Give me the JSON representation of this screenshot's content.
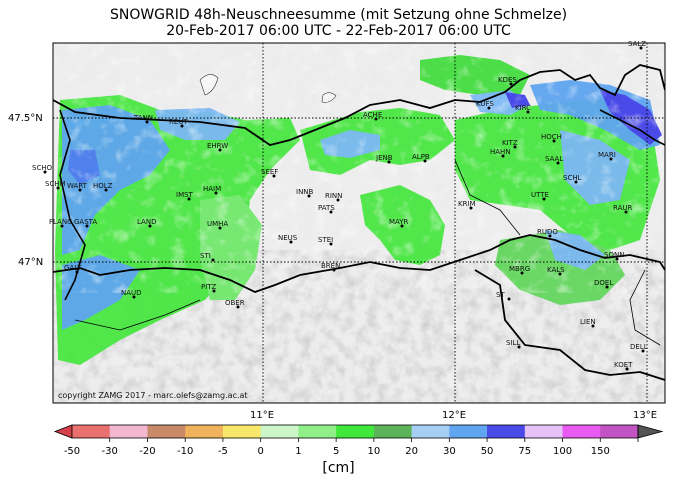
{
  "title": {
    "line1": "SNOWGRID 48h-Neuschneesumme (mit Setzung ohne Schmelze)",
    "line2": "20-Feb-2017 06:00 UTC - 22-Feb-2017 06:00 UTC"
  },
  "copyright": "copyright ZAMG 2017 - marc.olefs@zamg.ac.at",
  "lat_labels": [
    "47.5°N",
    "47°N"
  ],
  "lon_labels": [
    "11°E",
    "12°E",
    "13°E"
  ],
  "colorbar": {
    "unit": "[cm]",
    "ticks": [
      "-50",
      "-30",
      "-20",
      "-10",
      "-5",
      "0",
      "1",
      "5",
      "10",
      "20",
      "30",
      "50",
      "75",
      "100",
      "150"
    ],
    "colors": [
      "#e8706e",
      "#f2b8cf",
      "#c98a6a",
      "#f0b25a",
      "#f7e76a",
      "#cdf7c8",
      "#8ff08a",
      "#3fe83b",
      "#5db35a",
      "#a7cff5",
      "#5fa5f0",
      "#4a4ae8",
      "#e7c2f7",
      "#e85af0",
      "#c253c2"
    ],
    "left_extend_color": "#d6404a",
    "right_extend_color": "#555555"
  },
  "places": [
    {
      "name": "SALZ"
    },
    {
      "name": "KUFS"
    },
    {
      "name": "KIRC"
    },
    {
      "name": "KDES"
    },
    {
      "name": "TANN"
    },
    {
      "name": "REUT"
    },
    {
      "name": "ACHE"
    },
    {
      "name": "KITZ"
    },
    {
      "name": "HAHN"
    },
    {
      "name": "HOCH"
    },
    {
      "name": "MARI"
    },
    {
      "name": "SAAL"
    },
    {
      "name": "SCHO"
    },
    {
      "name": "EHRW"
    },
    {
      "name": "JENB"
    },
    {
      "name": "ALPB"
    },
    {
      "name": "SCHM"
    },
    {
      "name": "SEEF"
    },
    {
      "name": "SCHL"
    },
    {
      "name": "WART"
    },
    {
      "name": "HOLZ"
    },
    {
      "name": "IMST"
    },
    {
      "name": "HAIM"
    },
    {
      "name": "INNB"
    },
    {
      "name": "RINN"
    },
    {
      "name": "UTTE"
    },
    {
      "name": "PATS"
    },
    {
      "name": "KRIM"
    },
    {
      "name": "RAUR"
    },
    {
      "name": "FLANG"
    },
    {
      "name": "GASTA"
    },
    {
      "name": "LAND"
    },
    {
      "name": "UMHA"
    },
    {
      "name": "MAYR"
    },
    {
      "name": "NEUS"
    },
    {
      "name": "STEI"
    },
    {
      "name": "RUDO"
    },
    {
      "name": "SONN"
    },
    {
      "name": "STI"
    },
    {
      "name": "BREN"
    },
    {
      "name": "MBRG"
    },
    {
      "name": "KALS"
    },
    {
      "name": "GALT"
    },
    {
      "name": "DOEL"
    },
    {
      "name": "NAUD"
    },
    {
      "name": "PITZ"
    },
    {
      "name": "OBER"
    },
    {
      "name": "ST"
    },
    {
      "name": "LIEN"
    },
    {
      "name": "SILL"
    },
    {
      "name": "DELL"
    },
    {
      "name": "KOET"
    }
  ]
}
